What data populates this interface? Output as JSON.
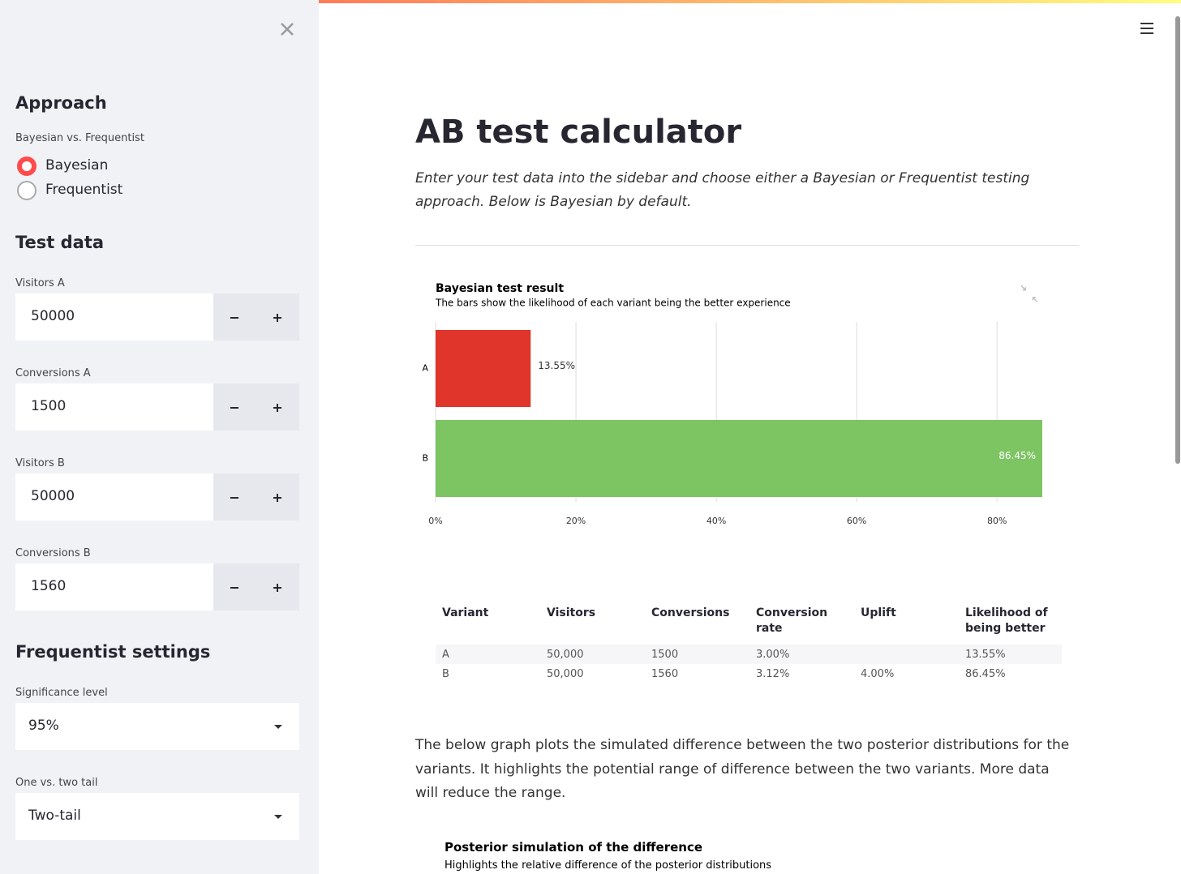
{
  "sidebar": {
    "approach": {
      "heading": "Approach",
      "label": "Bayesian vs. Frequentist",
      "options": [
        "Bayesian",
        "Frequentist"
      ],
      "selected": 0
    },
    "test_data": {
      "heading": "Test data",
      "inputs": [
        {
          "label": "Visitors A",
          "value": 50000
        },
        {
          "label": "Conversions A",
          "value": 1500
        },
        {
          "label": "Visitors B",
          "value": 50000
        },
        {
          "label": "Conversions B",
          "value": 1560
        }
      ]
    },
    "frequentist": {
      "heading": "Frequentist settings",
      "selects": [
        {
          "label": "Significance level",
          "value": "95%"
        },
        {
          "label": "One vs. two tail",
          "value": "Two-tail"
        }
      ]
    }
  },
  "main": {
    "title": "AB test calculator",
    "intro": "Enter your test data into the sidebar and choose either a Bayesian or Frequentist testing approach. Below is Bayesian by default.",
    "table": {
      "headers": [
        "Variant",
        "Visitors",
        "Conversions",
        "Conversion rate",
        "Uplift",
        "Likelihood of being better"
      ],
      "rows": [
        [
          "A",
          "50,000",
          "1500",
          "3.00%",
          null,
          "13.55%"
        ],
        [
          "B",
          "50,000",
          "1560",
          "3.12%",
          "4.00%",
          "86.45%"
        ]
      ]
    },
    "paragraph": "The below graph plots the simulated difference between the two posterior distributions for the variants. It highlights the potential range of difference between the two variants. More data will reduce the range.",
    "chart2": {
      "title": "Posterior simulation of the difference",
      "subtitle": "Highlights the relative difference of the posterior distributions"
    }
  },
  "chart_data": {
    "type": "hbar",
    "title": "Bayesian test result",
    "subtitle": "The bars show the likelihood of each variant being the better experience",
    "categories": [
      "A",
      "B"
    ],
    "values": [
      13.55,
      86.45
    ],
    "value_labels": [
      "13.55%",
      "86.45%"
    ],
    "colors": [
      "#e0352b",
      "#7dc463"
    ],
    "xlim": [
      0,
      86.45
    ],
    "xticks": [
      {
        "value": 0,
        "label": "0%"
      },
      {
        "value": 20,
        "label": "20%"
      },
      {
        "value": 40,
        "label": "40%"
      },
      {
        "value": 60,
        "label": "60%"
      },
      {
        "value": 80,
        "label": "80%"
      }
    ],
    "grid": true
  }
}
